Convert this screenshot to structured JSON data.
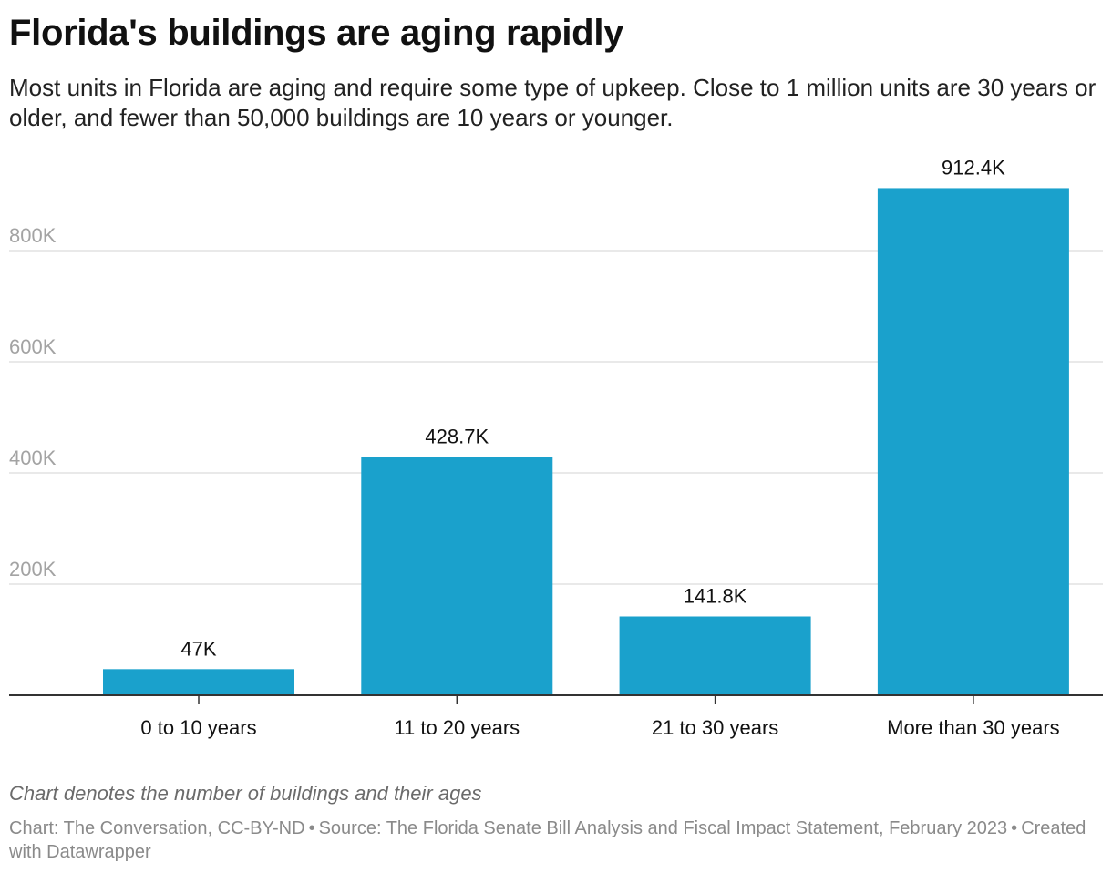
{
  "header": {
    "title": "Florida's buildings are aging rapidly",
    "subtitle": "Most units in Florida are aging and require some type of upkeep. Close to 1 million units are 30 years or older, and fewer than 50,000 buildings are 10 years or younger."
  },
  "chart_data": {
    "type": "bar",
    "categories": [
      "0 to 10 years",
      "11 to 20 years",
      "21 to 30 years",
      "More than 30 years"
    ],
    "values": [
      47000,
      428700,
      141800,
      912400
    ],
    "data_labels": [
      "47K",
      "428.7K",
      "141.8K",
      "912.4K"
    ],
    "y_ticks": [
      200000,
      400000,
      600000,
      800000
    ],
    "y_tick_labels": [
      "200K",
      "400K",
      "600K",
      "800K"
    ],
    "ylim": [
      0,
      912400
    ],
    "grid": true,
    "bar_color": "#1aa1cc",
    "grid_color": "#e2e2e2",
    "baseline_color": "#333333"
  },
  "footer": {
    "note": "Chart denotes the number of buildings and their ages",
    "credit": "Chart: The Conversation, CC-BY-ND",
    "source": "Source: The Florida Senate Bill Analysis and Fiscal Impact Statement, February 2023",
    "created_with": "Created with Datawrapper"
  }
}
